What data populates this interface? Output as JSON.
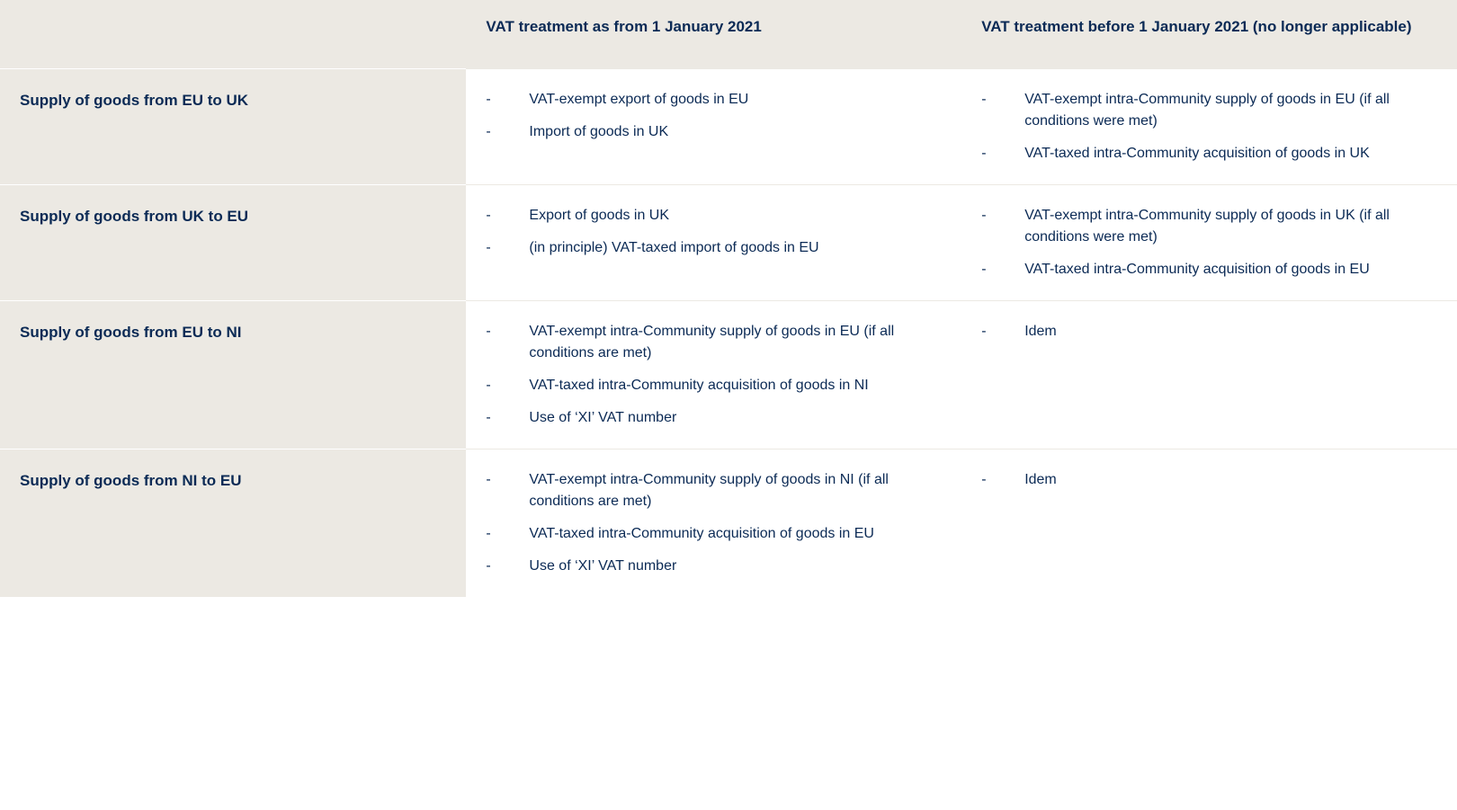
{
  "table": {
    "type": "table",
    "colors": {
      "text": "#0b2a55",
      "header_bg": "#ece9e3",
      "firstcol_bg": "#ece9e3",
      "cell_bg": "#ffffff"
    },
    "typography": {
      "header_fontsize": 17,
      "header_fontweight": 700,
      "body_fontsize": 16,
      "line_height": 1.5
    },
    "column_widths_pct": [
      32,
      34,
      34
    ],
    "columns": [
      "",
      "VAT treatment as from 1 January 2021",
      "VAT treatment before 1 January 2021 (no longer applicable)"
    ],
    "rows": [
      {
        "label": "Supply of goods from EU to UK",
        "after": [
          "VAT-exempt export of goods in EU",
          "Import of goods in UK"
        ],
        "before": [
          "VAT-exempt intra-Community supply of goods in EU (if all conditions were met)",
          "VAT-taxed intra-Community acquisition of goods in UK"
        ]
      },
      {
        "label": "Supply of goods from UK to EU",
        "after": [
          "Export of goods in UK",
          "(in principle) VAT-taxed import of goods in EU"
        ],
        "before": [
          "VAT-exempt intra-Community supply of goods in UK (if all conditions were met)",
          "VAT-taxed intra-Community acquisition of goods in EU"
        ]
      },
      {
        "label": "Supply of goods from EU to NI",
        "after": [
          "VAT-exempt intra-Community supply of goods in EU (if all conditions are met)",
          "VAT-taxed intra-Community acquisition of goods in NI",
          "Use of ‘XI’ VAT number"
        ],
        "before": [
          "Idem"
        ]
      },
      {
        "label": "Supply of goods from NI to EU",
        "after": [
          "VAT-exempt intra-Community supply of goods in NI (if all conditions are met)",
          "VAT-taxed intra-Community acquisition of goods in EU",
          "Use of ‘XI’ VAT number"
        ],
        "before": [
          "Idem"
        ]
      }
    ]
  }
}
